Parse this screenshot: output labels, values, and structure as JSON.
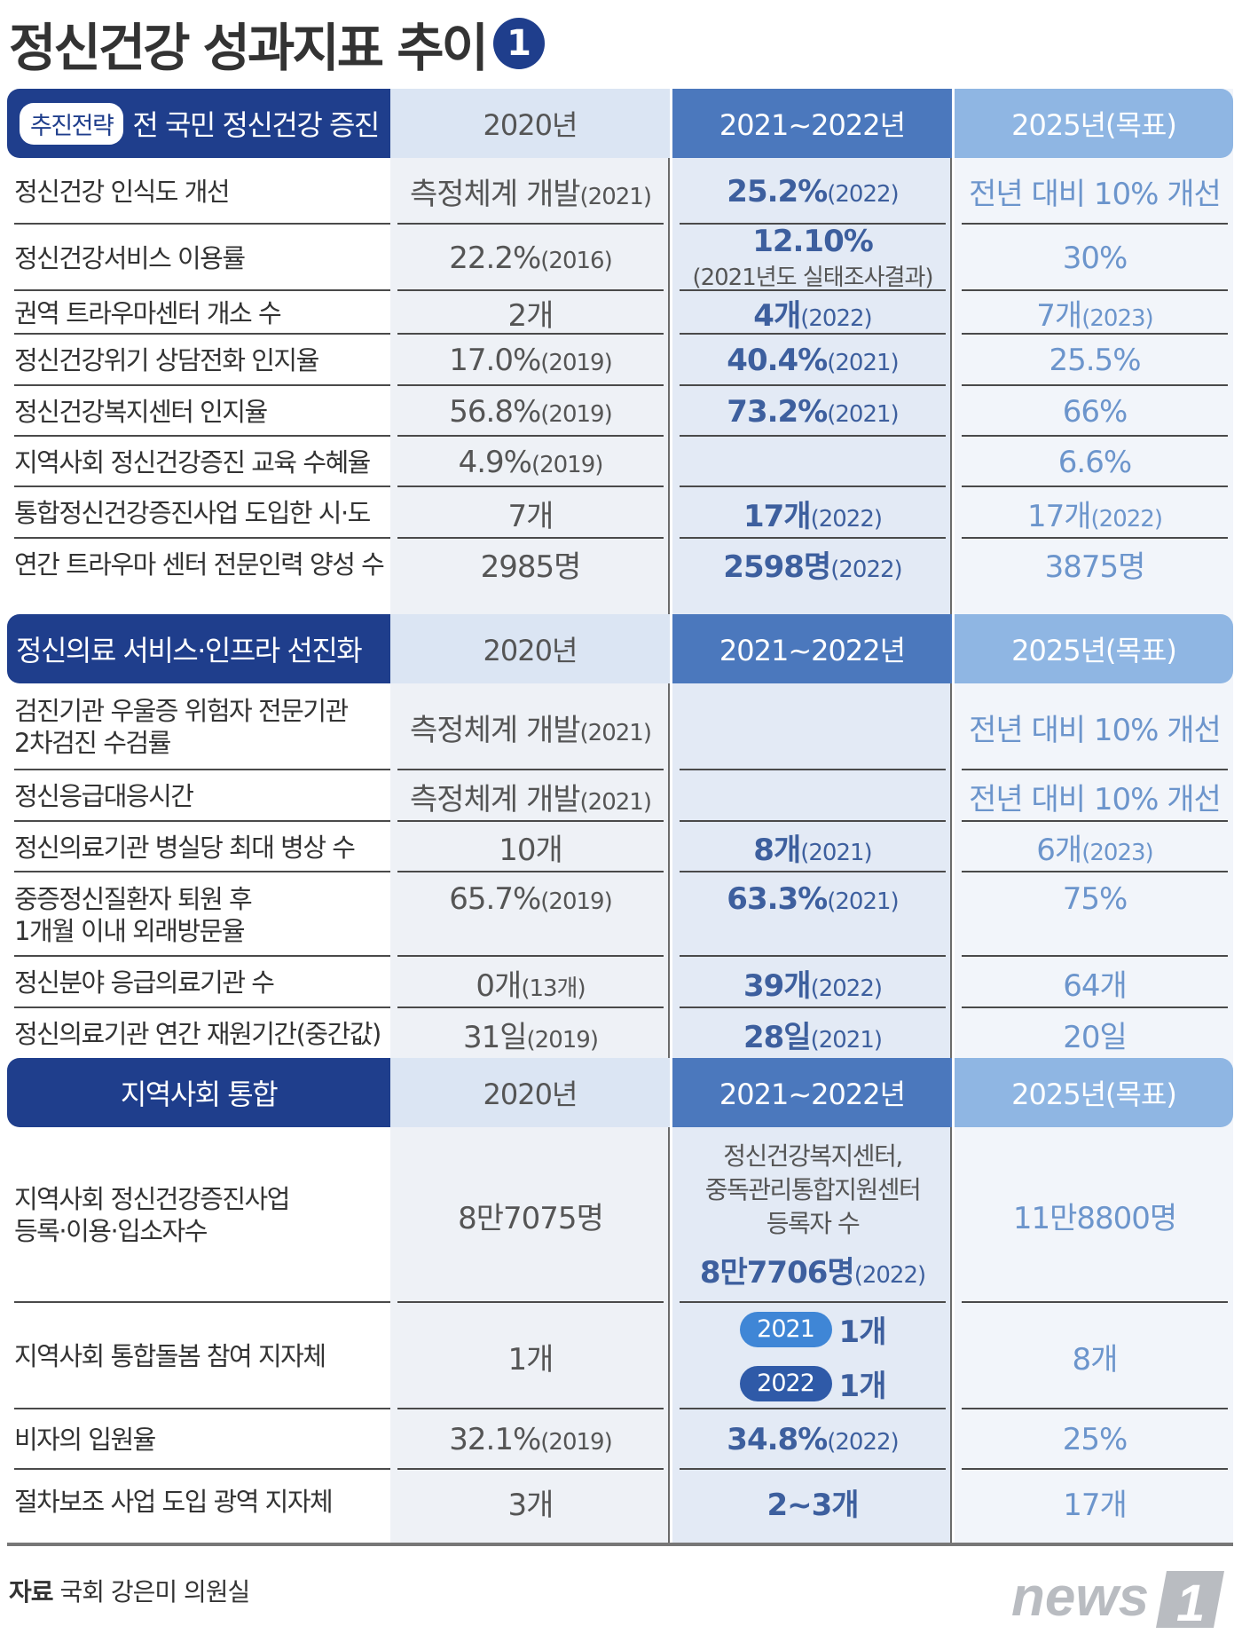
{
  "title": "정신건강 성과지표 추이",
  "title_number": "1",
  "sections": [
    {
      "chip": "추진전략",
      "strategy": "전 국민 정신건강 증진",
      "headers": [
        "2020년",
        "2021~2022년",
        "2025년(목표)"
      ],
      "rows": [
        {
          "label": "정신건강 인식도 개선",
          "v1": "측정체계 개발",
          "v1_sub": "(2021)",
          "v2": "25.2%",
          "v2_sub": "(2022)",
          "v3": "전년 대비 10% 개선",
          "v3_sub": ""
        },
        {
          "label": "정신건강서비스 이용률",
          "v1": "22.2%",
          "v1_sub": "(2016)",
          "v2": "12.10%",
          "v2_line2": "(2021년도 실태조사결과)",
          "v3": "30%",
          "v3_sub": ""
        },
        {
          "label": "권역 트라우마센터 개소 수",
          "v1": "2개",
          "v1_sub": "",
          "v2": "4개",
          "v2_sub": "(2022)",
          "v3": "7개",
          "v3_sub": "(2023)"
        },
        {
          "label": "정신건강위기 상담전화 인지율",
          "v1": "17.0%",
          "v1_sub": "(2019)",
          "v2": "40.4%",
          "v2_sub": "(2021)",
          "v3": "25.5%",
          "v3_sub": ""
        },
        {
          "label": "정신건강복지센터 인지율",
          "v1": "56.8%",
          "v1_sub": "(2019)",
          "v2": "73.2%",
          "v2_sub": "(2021)",
          "v3": "66%",
          "v3_sub": ""
        },
        {
          "label": "지역사회 정신건강증진 교육 수혜율",
          "v1": "4.9%",
          "v1_sub": "(2019)",
          "v2": "",
          "v2_sub": "",
          "v3": "6.6%",
          "v3_sub": ""
        },
        {
          "label": "통합정신건강증진사업 도입한 시·도",
          "v1": "7개",
          "v1_sub": "",
          "v2": "17개",
          "v2_sub": "(2022)",
          "v3": "17개",
          "v3_sub": "(2022)"
        },
        {
          "label": "연간 트라우마 센터 전문인력 양성 수",
          "v1": "2985명",
          "v1_sub": "",
          "v2": "2598명",
          "v2_sub": "(2022)",
          "v3": "3875명",
          "v3_sub": ""
        }
      ]
    },
    {
      "chip": "",
      "strategy": "정신의료 서비스·인프라 선진화",
      "headers": [
        "2020년",
        "2021~2022년",
        "2025년(목표)"
      ],
      "rows": [
        {
          "label": "검진기관 우울증 위험자 전문기관",
          "label_line2": "2차검진 수검률",
          "v1": "측정체계 개발",
          "v1_sub": "(2021)",
          "v2": "",
          "v2_sub": "",
          "v3": "전년 대비 10% 개선",
          "v3_sub": ""
        },
        {
          "label": "정신응급대응시간",
          "v1": "측정체계 개발",
          "v1_sub": "(2021)",
          "v2": "",
          "v2_sub": "",
          "v3": "전년 대비 10% 개선",
          "v3_sub": ""
        },
        {
          "label": "정신의료기관 병실당 최대 병상 수",
          "v1": "10개",
          "v1_sub": "",
          "v2": "8개",
          "v2_sub": "(2021)",
          "v3": "6개",
          "v3_sub": "(2023)"
        },
        {
          "label": "중증정신질환자 퇴원 후",
          "label_line2": "1개월 이내 외래방문율",
          "v1": "65.7%",
          "v1_sub": "(2019)",
          "v2": "63.3%",
          "v2_sub": "(2021)",
          "v3": "75%",
          "v3_sub": ""
        },
        {
          "label": "정신분야 응급의료기관 수",
          "v1": "0개",
          "v1_sub": "(13개)",
          "v2": "39개",
          "v2_sub": "(2022)",
          "v3": "64개",
          "v3_sub": ""
        },
        {
          "label": "정신의료기관 연간 재원기간(중간값)",
          "v1": "31일",
          "v1_sub": "(2019)",
          "v2": "28일",
          "v2_sub": "(2021)",
          "v3": "20일",
          "v3_sub": ""
        }
      ]
    },
    {
      "chip": "",
      "strategy": "지역사회 통합",
      "headers": [
        "2020년",
        "2021~2022년",
        "2025년(목표)"
      ],
      "rows": [
        {
          "label": "지역사회 정신건강증진사업",
          "label_line2": "등록·이용·입소자수",
          "v1": "8만7075명",
          "v1_sub": "",
          "v2_note": [
            "정신건강복지센터,",
            "중독관리통합지원센터",
            "등록자 수"
          ],
          "v2": "8만7706명",
          "v2_sub": "(2022)",
          "v3": "11만8800명",
          "v3_sub": ""
        },
        {
          "label": "지역사회 통합돌봄 참여 지자체",
          "v1": "1개",
          "v1_sub": "",
          "v2_pills": [
            {
              "year": "2021",
              "value": "1개"
            },
            {
              "year": "2022",
              "value": "1개"
            }
          ],
          "v3": "8개",
          "v3_sub": ""
        },
        {
          "label": "비자의 입원율",
          "v1": "32.1%",
          "v1_sub": "(2019)",
          "v2": "34.8%",
          "v2_sub": "(2022)",
          "v3": "25%",
          "v3_sub": ""
        },
        {
          "label": "절차보조 사업 도입 광역 지자체",
          "v1": "3개",
          "v1_sub": "",
          "v2": "2~3개",
          "v2_sub": "",
          "v3": "17개",
          "v3_sub": ""
        }
      ]
    }
  ],
  "footer": {
    "source_label": "자료",
    "source_value": "국회 강은미 의원실"
  },
  "logo": {
    "text": "news",
    "mark": "1"
  }
}
